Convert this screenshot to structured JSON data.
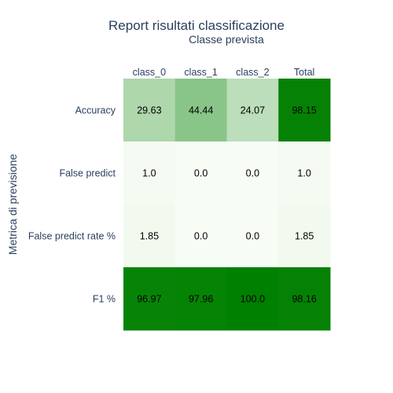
{
  "chart_data": {
    "type": "heatmap",
    "title": "Report risultati classificazione",
    "xlabel": "Classe prevista",
    "ylabel": "Metrica di previsione",
    "x_categories": [
      "class_0",
      "class_1",
      "class_2",
      "Total"
    ],
    "y_categories": [
      "Accuracy",
      "False predict",
      "False predict rate %",
      "F1 %"
    ],
    "values": [
      [
        29.63,
        44.44,
        24.07,
        98.15
      ],
      [
        1.0,
        0.0,
        0.0,
        1.0
      ],
      [
        1.85,
        0.0,
        0.0,
        1.85
      ],
      [
        96.97,
        97.96,
        100.0,
        98.16
      ]
    ],
    "labels": [
      [
        "29.63",
        "44.44",
        "24.07",
        "98.15"
      ],
      [
        "1.0",
        "0.0",
        "0.0",
        "1.0"
      ],
      [
        "1.85",
        "0.0",
        "0.0",
        "1.85"
      ],
      [
        "96.97",
        "97.96",
        "100.0",
        "98.16"
      ]
    ],
    "colorscale": {
      "min_color": "#f7fcf5",
      "max_color": "#008000"
    },
    "x_axis_position": "top",
    "show_colorbar": false
  }
}
